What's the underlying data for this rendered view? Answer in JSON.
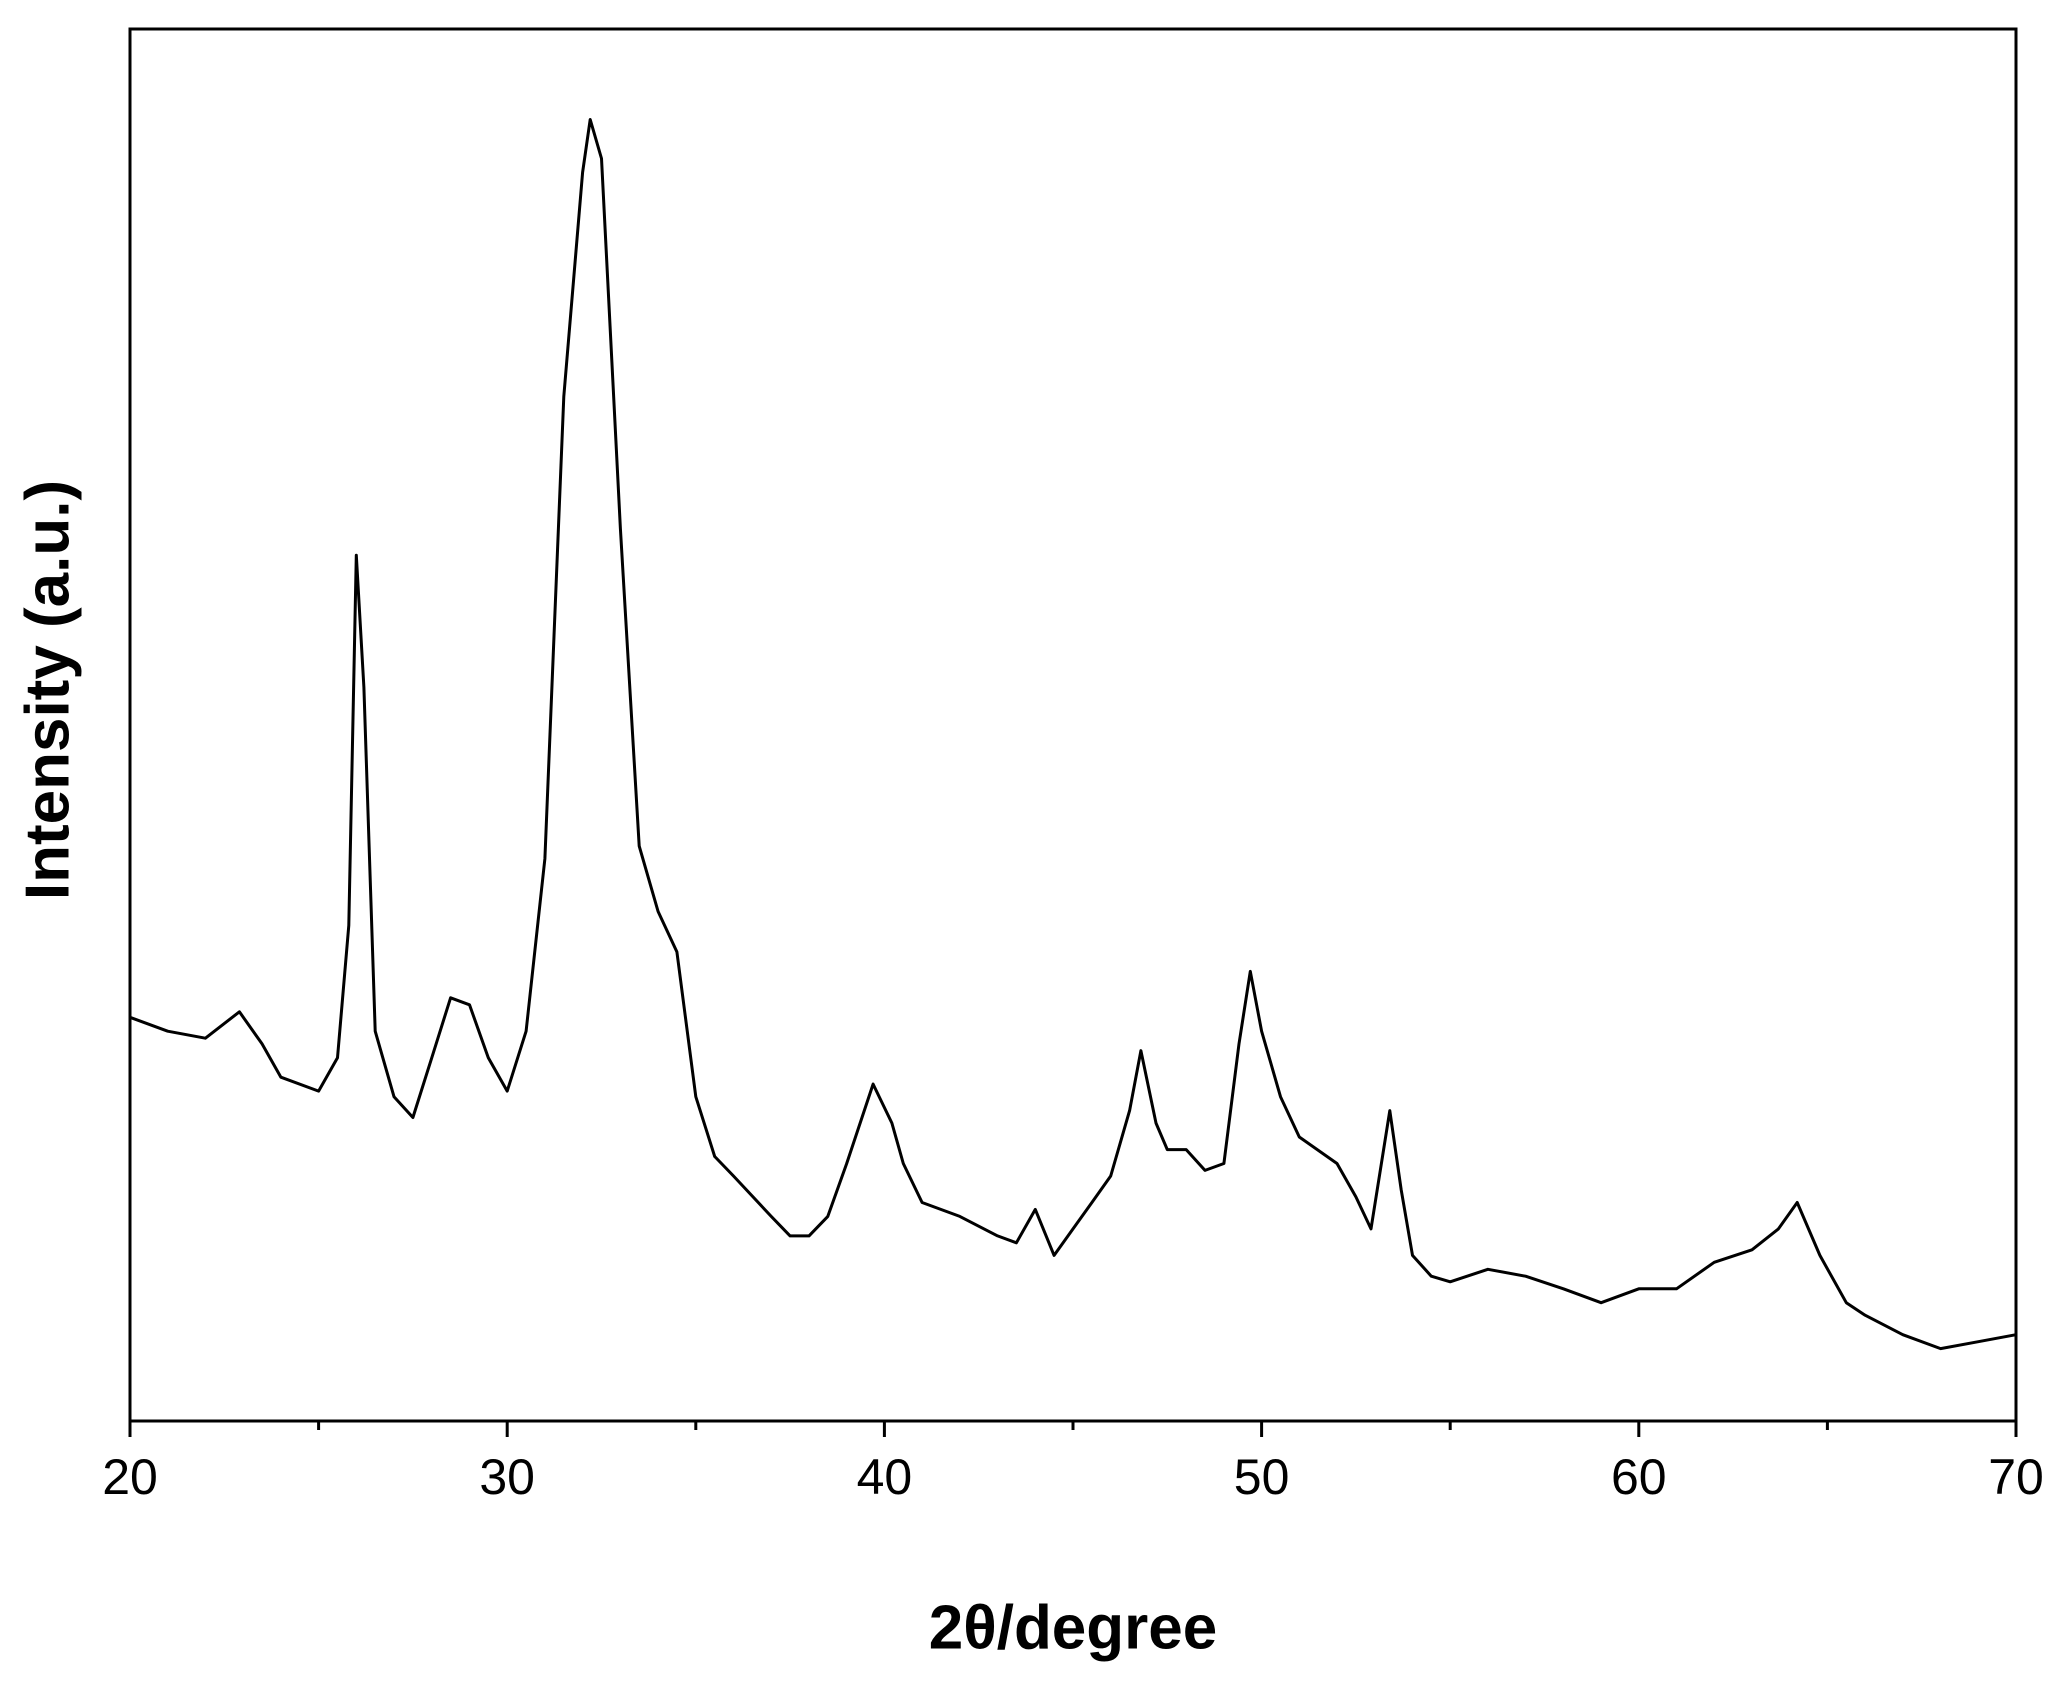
{
  "chart_data": {
    "type": "line",
    "xlabel": "2θ/degree",
    "ylabel": "Intensity (a.u.)",
    "x": [
      20,
      21,
      22,
      22.9,
      23.5,
      24,
      25,
      25.5,
      25.8,
      26.0,
      26.2,
      26.5,
      27,
      27.5,
      28,
      28.5,
      29,
      29.5,
      30,
      30.5,
      31,
      31.5,
      32,
      32.2,
      32.5,
      33,
      33.5,
      34,
      34.5,
      35,
      35.5,
      36,
      37,
      37.5,
      38,
      38.5,
      39,
      39.7,
      40.2,
      40.5,
      41,
      42,
      43,
      43.5,
      44,
      44.5,
      45,
      45.5,
      46,
      46.5,
      46.8,
      47.2,
      47.5,
      48,
      48.5,
      49,
      49.4,
      49.7,
      50,
      50.5,
      51,
      52,
      52.5,
      52.9,
      53.4,
      53.7,
      54,
      54.5,
      55,
      56,
      57,
      58,
      59,
      60,
      61,
      62,
      63,
      63.7,
      64.2,
      64.8,
      65.5,
      66,
      67,
      68,
      69,
      70
    ],
    "series": [
      {
        "color": "#000000",
        "values": [
          29.0,
          28.0,
          27.5,
          29.4,
          27.1,
          24.7,
          23.7,
          26.1,
          35.6,
          62.2,
          52.7,
          28.0,
          23.3,
          21.8,
          26.1,
          30.4,
          29.9,
          26.1,
          23.7,
          28.0,
          40.4,
          73.6,
          89.7,
          93.5,
          90.7,
          64.1,
          41.3,
          36.6,
          33.7,
          23.3,
          19.0,
          17.6,
          14.7,
          13.3,
          13.3,
          14.7,
          18.5,
          24.2,
          21.4,
          18.5,
          15.7,
          14.7,
          13.3,
          12.8,
          15.2,
          11.9,
          13.8,
          15.7,
          17.6,
          22.3,
          26.6,
          21.4,
          19.5,
          19.5,
          18.0,
          18.5,
          27.1,
          32.3,
          28.0,
          23.3,
          20.4,
          18.5,
          16.1,
          13.8,
          22.3,
          16.6,
          11.9,
          10.4,
          10.0,
          10.9,
          10.4,
          9.5,
          8.5,
          9.5,
          9.5,
          11.4,
          12.3,
          13.8,
          15.7,
          11.9,
          8.5,
          7.6,
          6.2,
          5.2,
          5.7,
          6.2
        ]
      }
    ],
    "xlim": [
      20,
      70
    ],
    "xticks": [
      20,
      30,
      40,
      50,
      60,
      70
    ],
    "xminorticks": [
      25,
      35,
      45,
      55,
      65
    ],
    "ylim": [
      0,
      100
    ]
  }
}
